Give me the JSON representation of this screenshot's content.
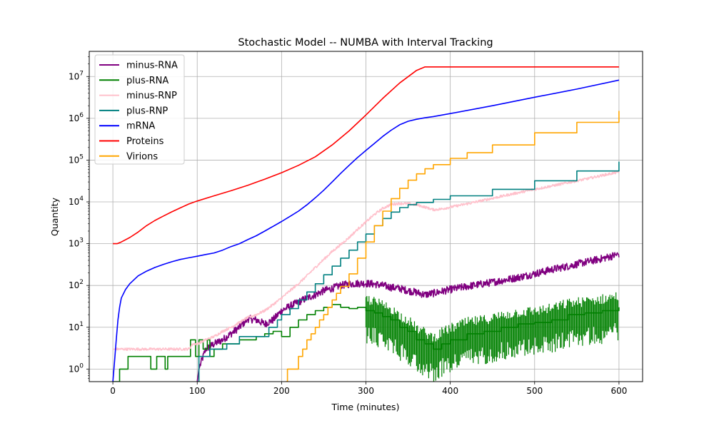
{
  "chart_data": {
    "type": "line",
    "title": "Stochastic Model -- NUMBA with Interval Tracking",
    "xlabel": "Time (minutes)",
    "ylabel": "Quantity",
    "xlim": [
      -28,
      628
    ],
    "ylim": [
      0.5,
      40000000
    ],
    "y_scale": "log",
    "grid": true,
    "legend_position": "top-left",
    "x_ticks": [
      0,
      100,
      200,
      300,
      400,
      500,
      600
    ],
    "x_tick_labels": [
      "0",
      "100",
      "200",
      "300",
      "400",
      "500",
      "600"
    ],
    "y_ticks": [
      1,
      10,
      100,
      1000,
      10000,
      100000,
      1000000,
      10000000
    ],
    "y_tick_labels": [
      {
        "base": "10",
        "exp": "0"
      },
      {
        "base": "10",
        "exp": "1"
      },
      {
        "base": "10",
        "exp": "2"
      },
      {
        "base": "10",
        "exp": "3"
      },
      {
        "base": "10",
        "exp": "4"
      },
      {
        "base": "10",
        "exp": "5"
      },
      {
        "base": "10",
        "exp": "6"
      },
      {
        "base": "10",
        "exp": "7"
      }
    ],
    "series": [
      {
        "name": "minus-RNA",
        "color": "#800080",
        "step": false,
        "noise": 0.09,
        "x": [
          100,
          102,
          110,
          120,
          130,
          140,
          150,
          160,
          170,
          180,
          190,
          200,
          210,
          220,
          230,
          240,
          250,
          260,
          270,
          280,
          290,
          300,
          310,
          320,
          330,
          340,
          350,
          360,
          370,
          380,
          390,
          400,
          420,
          440,
          460,
          480,
          500,
          520,
          540,
          560,
          580,
          600
        ],
        "y": [
          0.5,
          1,
          3,
          4,
          5,
          7,
          10,
          16,
          15,
          12,
          15,
          25,
          32,
          40,
          50,
          60,
          75,
          85,
          100,
          108,
          112,
          112,
          108,
          100,
          90,
          85,
          75,
          68,
          60,
          65,
          72,
          80,
          95,
          110,
          130,
          155,
          190,
          240,
          290,
          360,
          440,
          560
        ]
      },
      {
        "name": "plus-RNA",
        "color": "#008000",
        "step": true,
        "noise": 0.0,
        "x": [
          0,
          5,
          8,
          18,
          45,
          52,
          62,
          65,
          72,
          92,
          98,
          102,
          107,
          112,
          115,
          120,
          130,
          140,
          150,
          160,
          170,
          180,
          190,
          200,
          210,
          220,
          230,
          240,
          250,
          260,
          270,
          280,
          290,
          300,
          310,
          320,
          330,
          340,
          350,
          360,
          370,
          380,
          390,
          400,
          420,
          440,
          460,
          480,
          500,
          520,
          540,
          560,
          580,
          600
        ],
        "y": [
          0.5,
          0.5,
          1,
          2,
          1,
          2,
          1,
          2,
          2,
          5,
          2,
          5,
          3,
          5,
          2,
          3,
          4,
          4,
          5,
          5,
          6,
          7,
          8,
          6,
          10,
          15,
          20,
          25,
          30,
          35,
          30,
          28,
          30,
          25,
          22,
          18,
          15,
          10,
          8,
          5,
          4,
          3,
          4,
          5,
          7,
          8,
          10,
          12,
          13,
          15,
          20,
          22,
          25,
          30
        ]
      },
      {
        "name": "minus-RNP",
        "color": "#ffc0cb",
        "step": false,
        "noise": 0.03,
        "x": [
          0,
          60,
          90,
          95,
          100,
          110,
          120,
          130,
          140,
          150,
          160,
          170,
          180,
          190,
          200,
          210,
          220,
          230,
          240,
          250,
          260,
          270,
          280,
          290,
          300,
          310,
          320,
          330,
          340,
          350,
          360,
          370,
          380,
          390,
          400,
          420,
          440,
          460,
          480,
          500,
          520,
          540,
          560,
          580,
          600
        ],
        "y": [
          3,
          3,
          3,
          4,
          4,
          5,
          6,
          8,
          10,
          13,
          17,
          20,
          25,
          35,
          50,
          75,
          110,
          170,
          270,
          420,
          650,
          950,
          1400,
          2200,
          3300,
          5000,
          7000,
          8700,
          9200,
          9000,
          8500,
          7500,
          6500,
          6800,
          7500,
          9000,
          11000,
          13500,
          16500,
          20000,
          24000,
          29000,
          35000,
          43000,
          52000
        ]
      },
      {
        "name": "plus-RNP",
        "color": "#008080",
        "step": true,
        "noise": 0.0,
        "x": [
          100,
          102,
          115,
          125,
          135,
          150,
          160,
          175,
          185,
          195,
          200,
          210,
          220,
          230,
          240,
          250,
          260,
          270,
          280,
          290,
          300,
          310,
          320,
          330,
          340,
          350,
          360,
          380,
          400,
          450,
          500,
          550,
          600
        ],
        "y": [
          0.5,
          2,
          3,
          3,
          4,
          6,
          6,
          6,
          10,
          15,
          20,
          28,
          45,
          70,
          110,
          180,
          290,
          450,
          700,
          1100,
          1700,
          2700,
          4000,
          5700,
          7300,
          8600,
          9700,
          11500,
          14000,
          20000,
          32000,
          55000,
          92000
        ]
      },
      {
        "name": "mRNA",
        "color": "#0000ff",
        "step": false,
        "noise": 0.0,
        "x": [
          0,
          2,
          4,
          6,
          8,
          10,
          15,
          20,
          30,
          40,
          50,
          60,
          70,
          80,
          90,
          100,
          110,
          120,
          130,
          140,
          150,
          160,
          170,
          180,
          190,
          200,
          210,
          220,
          230,
          240,
          250,
          260,
          270,
          280,
          290,
          300,
          310,
          320,
          330,
          340,
          350,
          360,
          370,
          380,
          400,
          450,
          500,
          550,
          600
        ],
        "y": [
          0.5,
          1.5,
          5,
          15,
          30,
          50,
          80,
          110,
          170,
          220,
          270,
          320,
          370,
          420,
          460,
          500,
          550,
          600,
          700,
          850,
          1000,
          1250,
          1550,
          2000,
          2600,
          3400,
          4500,
          6000,
          8500,
          12500,
          19000,
          30000,
          48000,
          75000,
          115000,
          170000,
          250000,
          370000,
          520000,
          700000,
          850000,
          950000,
          1030000,
          1100000,
          1300000,
          2000000,
          3200000,
          5000000,
          8200000
        ]
      },
      {
        "name": "Proteins",
        "color": "#ff0000",
        "step": false,
        "noise": 0.0,
        "x": [
          0,
          5,
          10,
          20,
          30,
          40,
          50,
          60,
          70,
          80,
          90,
          100,
          120,
          140,
          160,
          180,
          200,
          220,
          240,
          260,
          280,
          300,
          320,
          340,
          360,
          370,
          400,
          500,
          600
        ],
        "y": [
          1000,
          1000,
          1100,
          1400,
          1900,
          2700,
          3600,
          4600,
          5800,
          7200,
          8900,
          10500,
          14000,
          18500,
          25000,
          35000,
          50000,
          75000,
          120000,
          230000,
          500000,
          1200000,
          3000000,
          7000000,
          14000000,
          17000000,
          17000000,
          17000000,
          17000000
        ]
      },
      {
        "name": "Virions",
        "color": "#ffa500",
        "step": true,
        "noise": 0.0,
        "x": [
          205,
          207,
          215,
          220,
          225,
          230,
          235,
          240,
          245,
          250,
          255,
          260,
          265,
          270,
          280,
          290,
          300,
          310,
          320,
          330,
          340,
          350,
          360,
          370,
          380,
          400,
          420,
          450,
          500,
          550,
          600
        ],
        "y": [
          0.5,
          1,
          1,
          2,
          3,
          5,
          7,
          10,
          15,
          20,
          30,
          45,
          65,
          95,
          190,
          450,
          1100,
          2700,
          6000,
          12000,
          21000,
          33000,
          47000,
          62000,
          78000,
          110000,
          150000,
          230000,
          450000,
          800000,
          1500000
        ]
      }
    ]
  }
}
